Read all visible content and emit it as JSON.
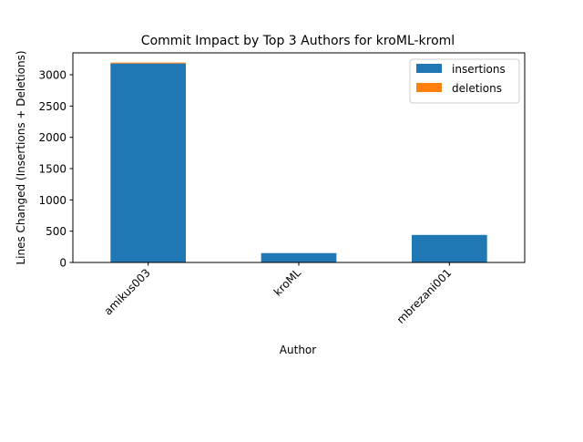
{
  "chart_data": {
    "type": "bar",
    "stacked": true,
    "title": "Commit Impact by Top 3 Authors for kroML-kroml",
    "xlabel": "Author",
    "ylabel": "Lines Changed (Insertions + Deletions)",
    "categories": [
      "amikus003",
      "kroML",
      "mbrezani001"
    ],
    "series": [
      {
        "name": "insertions",
        "values": [
          3180,
          150,
          440
        ],
        "color": "#1f77b4"
      },
      {
        "name": "deletions",
        "values": [
          15,
          0,
          0
        ],
        "color": "#ff7f0e"
      }
    ],
    "ylim": [
      0,
      3350
    ],
    "yticks": [
      0,
      500,
      1000,
      1500,
      2000,
      2500,
      3000
    ],
    "grid": false,
    "legend_position": "top-right",
    "xtick_rotation": 45
  }
}
